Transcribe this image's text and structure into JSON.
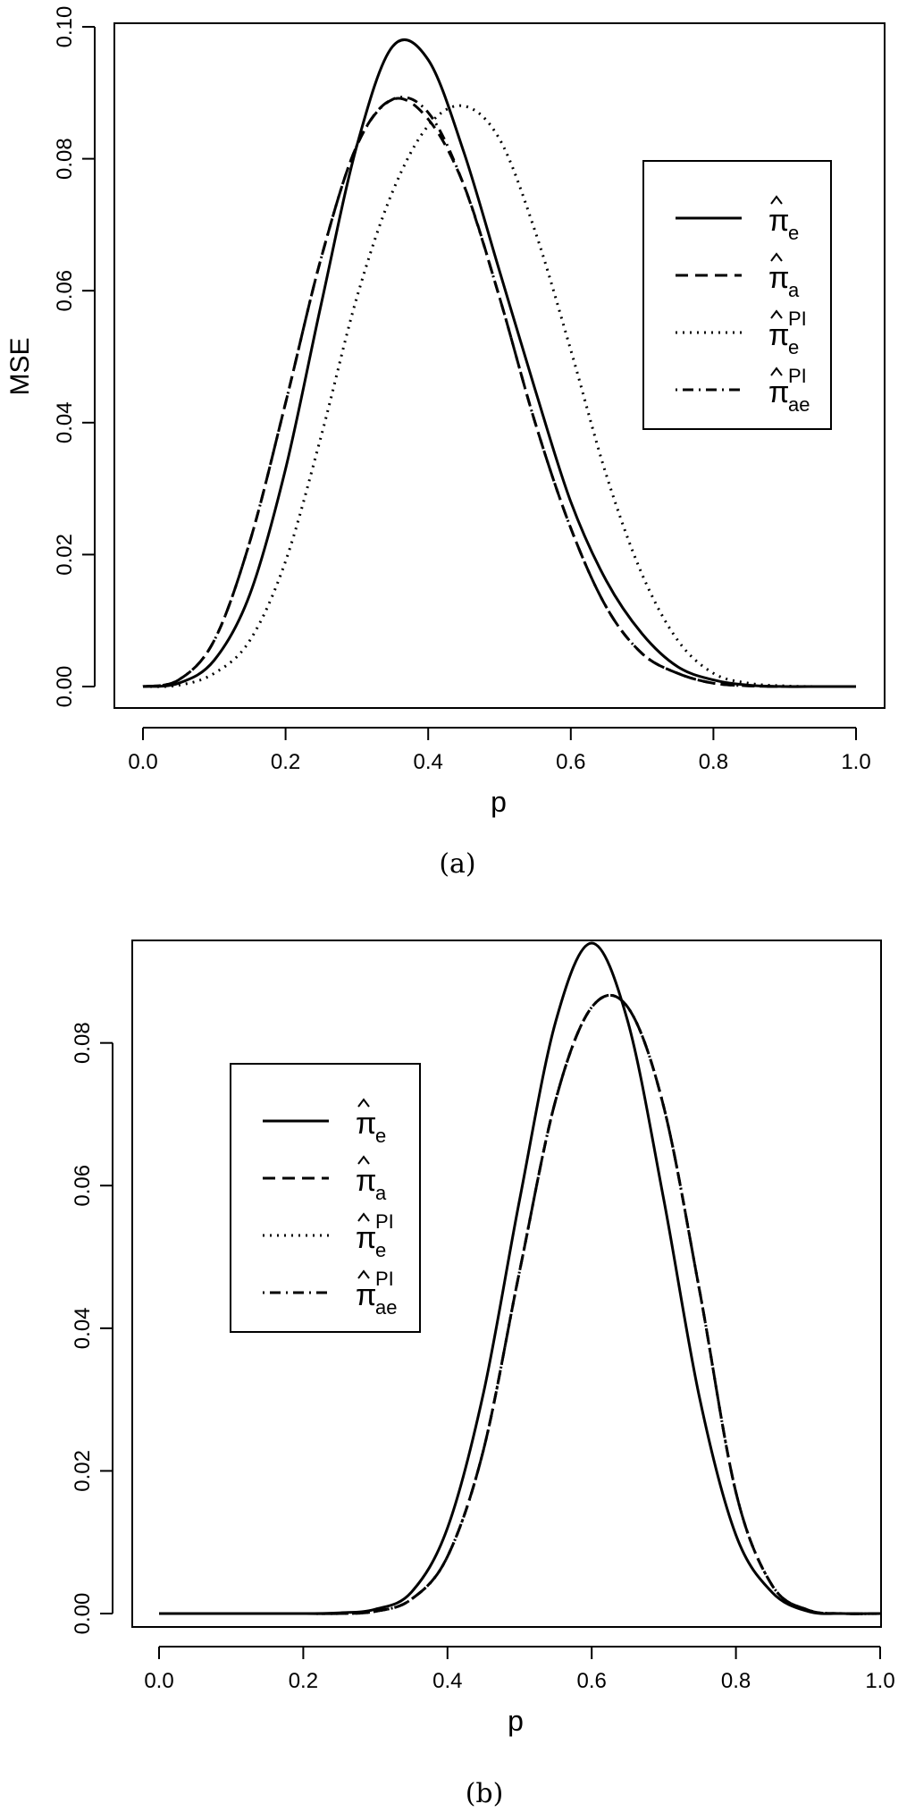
{
  "chart_data": [
    {
      "id": "a",
      "type": "line",
      "caption": "(a)",
      "title": "",
      "xlabel": "p",
      "ylabel": "MSE",
      "xlim": [
        0.0,
        1.0
      ],
      "ylim": [
        0.0,
        0.1
      ],
      "xticks": [
        "0.0",
        "0.2",
        "0.4",
        "0.6",
        "0.8",
        "1.0"
      ],
      "yticks": [
        "0.00",
        "0.02",
        "0.04",
        "0.06",
        "0.08",
        "0.10"
      ],
      "legend_position": "right",
      "legend": [
        {
          "base": "π",
          "sub": "e",
          "sup": "",
          "style": "solid"
        },
        {
          "base": "π",
          "sub": "a",
          "sup": "",
          "style": "dashed"
        },
        {
          "base": "π",
          "sub": "e",
          "sup": "PI",
          "style": "dotted"
        },
        {
          "base": "π",
          "sub": "ae",
          "sup": "PI",
          "style": "dotdash"
        }
      ],
      "x": [
        0.0,
        0.05,
        0.1,
        0.15,
        0.2,
        0.25,
        0.3,
        0.35,
        0.4,
        0.45,
        0.5,
        0.55,
        0.6,
        0.65,
        0.7,
        0.75,
        0.8,
        0.85,
        0.9,
        0.95,
        1.0
      ],
      "series": [
        {
          "style": "solid",
          "values": [
            0.0,
            0.0005,
            0.004,
            0.014,
            0.033,
            0.058,
            0.082,
            0.097,
            0.095,
            0.081,
            0.063,
            0.045,
            0.028,
            0.016,
            0.008,
            0.003,
            0.001,
            0.0002,
            0.0,
            0.0,
            0.0
          ]
        },
        {
          "style": "dashed",
          "values": [
            0.0,
            0.001,
            0.007,
            0.022,
            0.043,
            0.065,
            0.082,
            0.089,
            0.086,
            0.076,
            0.059,
            0.04,
            0.024,
            0.012,
            0.005,
            0.002,
            0.0005,
            0.0001,
            0.0,
            0.0,
            0.0
          ]
        },
        {
          "style": "dotted",
          "values": [
            0.0,
            0.0002,
            0.002,
            0.007,
            0.019,
            0.038,
            0.059,
            0.075,
            0.085,
            0.088,
            0.083,
            0.069,
            0.051,
            0.032,
            0.017,
            0.007,
            0.002,
            0.0005,
            0.0001,
            0.0,
            0.0
          ]
        },
        {
          "style": "dotdash",
          "values": [
            0.0,
            0.001,
            0.007,
            0.022,
            0.043,
            0.065,
            0.082,
            0.089,
            0.087,
            0.076,
            0.059,
            0.04,
            0.024,
            0.012,
            0.005,
            0.002,
            0.0005,
            0.0001,
            0.0,
            0.0,
            0.0
          ]
        }
      ]
    },
    {
      "id": "b",
      "type": "line",
      "caption": "(b)",
      "title": "",
      "xlabel": "p",
      "ylabel": "",
      "xlim": [
        0.0,
        1.0
      ],
      "ylim": [
        0.0,
        0.095
      ],
      "xticks": [
        "0.0",
        "0.2",
        "0.4",
        "0.6",
        "0.8",
        "1.0"
      ],
      "yticks": [
        "0.00",
        "0.02",
        "0.04",
        "0.06",
        "0.08"
      ],
      "legend_position": "top-left",
      "legend": [
        {
          "base": "π",
          "sub": "e",
          "sup": "",
          "style": "solid"
        },
        {
          "base": "π",
          "sub": "a",
          "sup": "",
          "style": "dashed"
        },
        {
          "base": "π",
          "sub": "e",
          "sup": "PI",
          "style": "dotted"
        },
        {
          "base": "π",
          "sub": "ae",
          "sup": "PI",
          "style": "dotdash"
        }
      ],
      "x": [
        0.0,
        0.05,
        0.1,
        0.15,
        0.2,
        0.25,
        0.3,
        0.35,
        0.4,
        0.45,
        0.5,
        0.55,
        0.6,
        0.65,
        0.7,
        0.75,
        0.8,
        0.85,
        0.9,
        0.95,
        1.0
      ],
      "series": [
        {
          "style": "solid",
          "values": [
            0.0,
            0.0,
            0.0,
            0.0,
            0.0,
            0.0001,
            0.0006,
            0.003,
            0.012,
            0.031,
            0.058,
            0.083,
            0.094,
            0.083,
            0.058,
            0.03,
            0.011,
            0.003,
            0.0003,
            0.0,
            0.0
          ]
        },
        {
          "style": "dashed",
          "values": [
            0.0,
            0.0,
            0.0,
            0.0,
            0.0,
            0.0,
            0.0003,
            0.002,
            0.008,
            0.023,
            0.048,
            0.072,
            0.085,
            0.085,
            0.071,
            0.045,
            0.017,
            0.004,
            0.0005,
            0.0,
            0.0
          ]
        },
        {
          "style": "dotted",
          "values": [
            0.0,
            0.0,
            0.0,
            0.0,
            0.0,
            0.0,
            0.0003,
            0.002,
            0.008,
            0.023,
            0.048,
            0.072,
            0.085,
            0.085,
            0.071,
            0.045,
            0.017,
            0.004,
            0.0005,
            0.0,
            0.0
          ]
        },
        {
          "style": "dotdash",
          "values": [
            0.0,
            0.0,
            0.0,
            0.0,
            0.0,
            0.0,
            0.0003,
            0.002,
            0.008,
            0.023,
            0.048,
            0.072,
            0.085,
            0.085,
            0.071,
            0.045,
            0.017,
            0.004,
            0.0005,
            0.0,
            0.0
          ]
        }
      ]
    }
  ]
}
